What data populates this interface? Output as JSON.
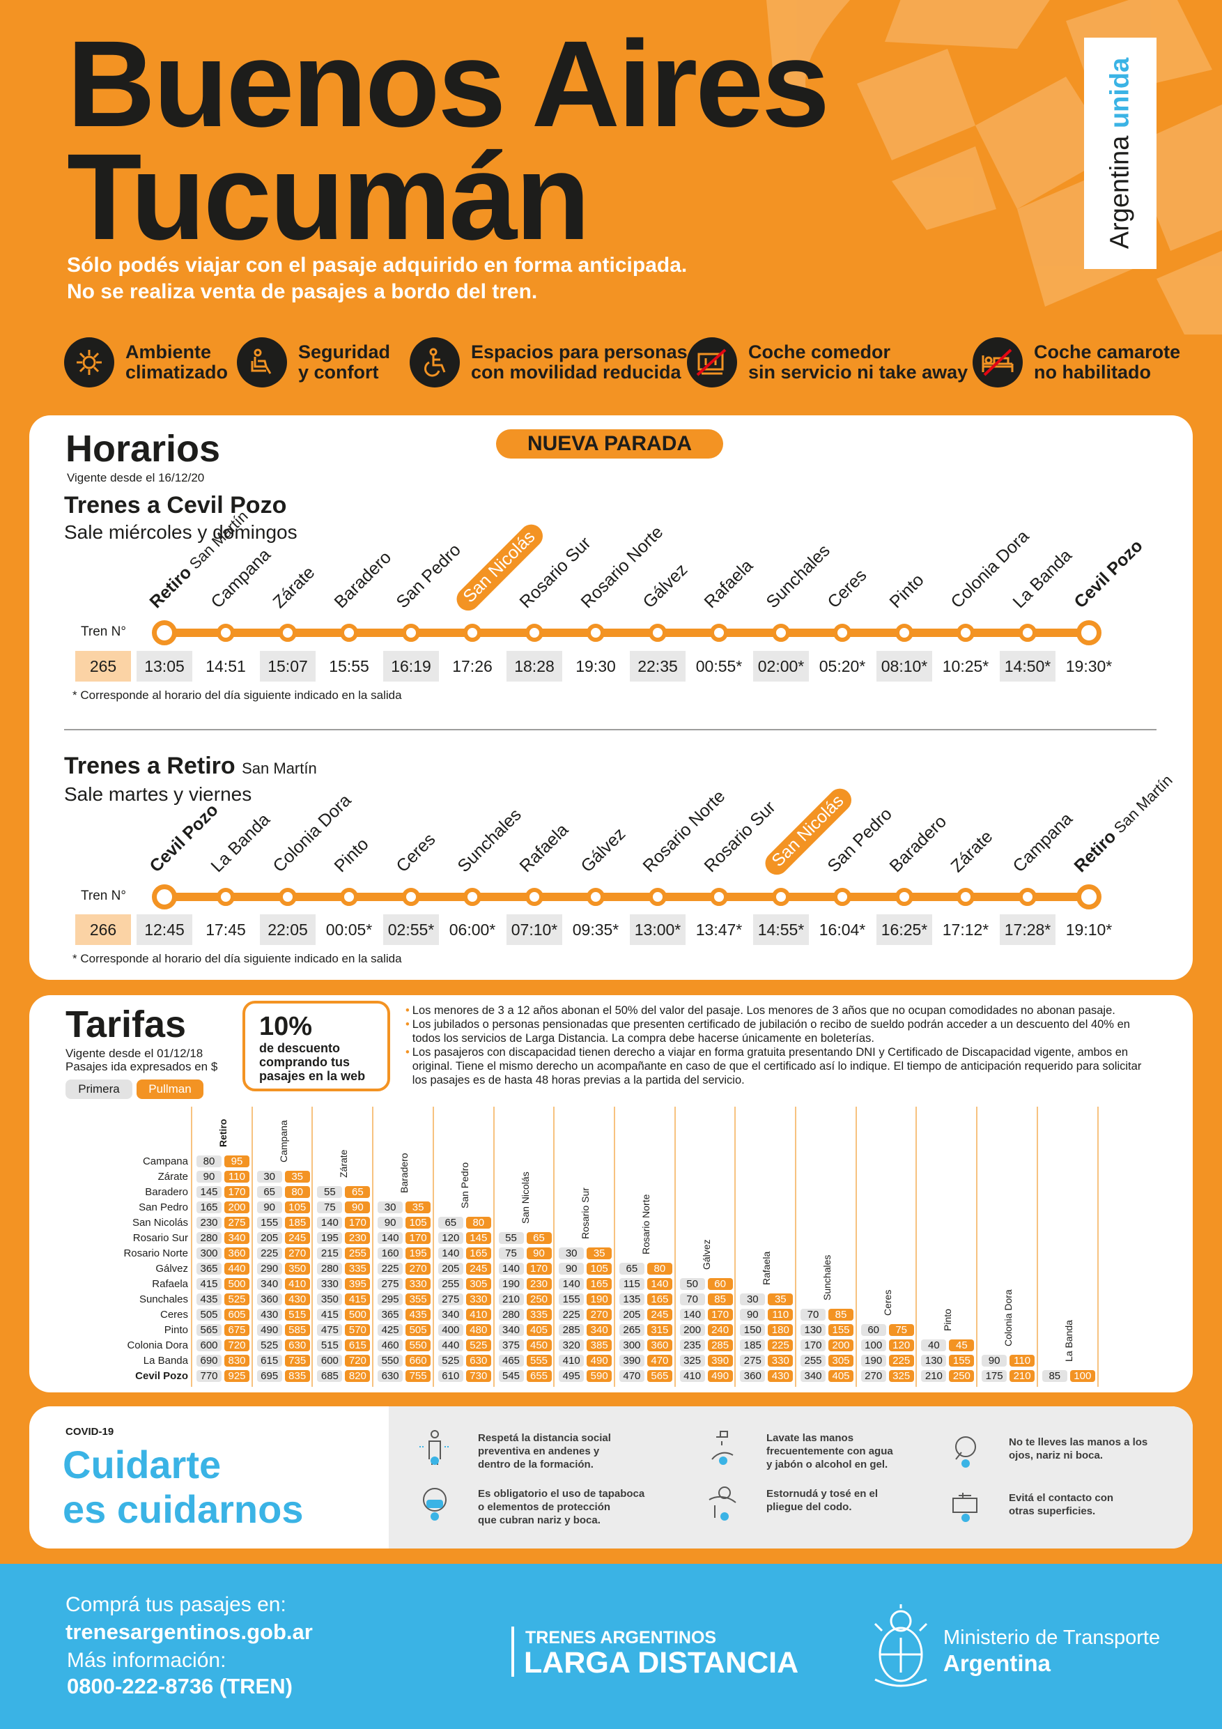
{
  "header": {
    "title_line1": "Buenos Aires",
    "title_line2": "Tucumán",
    "subtitle_line1": "Sólo podés viajar con el pasaje adquirido en forma anticipada.",
    "subtitle_line2": "No se realiza venta de pasajes a bordo del tren.",
    "brand_a": "Argentina",
    "brand_b": "unida"
  },
  "features": [
    {
      "icon": "climate-icon",
      "text": "Ambiente\nclimatizado"
    },
    {
      "icon": "seat-icon",
      "text": "Seguridad\ny confort"
    },
    {
      "icon": "wheelchair-icon",
      "text": "Espacios para personas\ncon movilidad reducida"
    },
    {
      "icon": "dining-car-off-icon",
      "text": "Coche comedor\nsin servicio ni take away"
    },
    {
      "icon": "sleeper-car-off-icon",
      "text": "Coche camarote\nno habilitado"
    }
  ],
  "horarios": {
    "title": "Horarios",
    "badge": "NUEVA PARADA",
    "vigente": "Vigente desde el 16/12/20",
    "tren_label": "Tren N°",
    "note": "* Corresponde al horario del día siguiente indicado en la salida",
    "outbound": {
      "title": "Trenes a Cevil Pozo",
      "days": "Sale miércoles y domingos",
      "train": "265",
      "stations": [
        "Retiro",
        "Campana",
        "Zárate",
        "Baradero",
        "San Pedro",
        "San Nicolás",
        "Rosario Sur",
        "Rosario Norte",
        "Gálvez",
        "Rafaela",
        "Sunchales",
        "Ceres",
        "Pinto",
        "Colonia Dora",
        "La Banda",
        "Cevil Pozo"
      ],
      "first_sub": "San Martín",
      "times": [
        "13:05",
        "14:51",
        "15:07",
        "15:55",
        "16:19",
        "17:26",
        "18:28",
        "19:30",
        "22:35",
        "00:55*",
        "02:00*",
        "05:20*",
        "08:10*",
        "10:25*",
        "14:50*",
        "19:30*"
      ]
    },
    "inbound": {
      "title": "Trenes a Retiro",
      "title_sub": "San Martín",
      "days": "Sale martes y viernes",
      "train": "266",
      "stations": [
        "Cevil Pozo",
        "La Banda",
        "Colonia Dora",
        "Pinto",
        "Ceres",
        "Sunchales",
        "Rafaela",
        "Gálvez",
        "Rosario Norte",
        "Rosario Sur",
        "San Nicolás",
        "San Pedro",
        "Baradero",
        "Zárate",
        "Campana",
        "Retiro"
      ],
      "last_sub": "San Martín",
      "times": [
        "12:45",
        "17:45",
        "22:05",
        "00:05*",
        "02:55*",
        "06:00*",
        "07:10*",
        "09:35*",
        "13:00*",
        "13:47*",
        "14:55*",
        "16:04*",
        "16:25*",
        "17:12*",
        "17:28*",
        "19:10*"
      ]
    }
  },
  "tarifas": {
    "title": "Tarifas",
    "vigente": "Vigente desde el 01/12/18",
    "ida": "Pasajes ida expresados en $",
    "class_primera": "Primera",
    "class_pullman": "Pullman",
    "promo_pct": "10%",
    "promo_text": "de descuento\ncomprando tus\npasajes en la web",
    "bullets": [
      "Los menores de 3 a 12 años abonan el 50% del valor del pasaje. Los menores de 3 años que no ocupan comodidades no abonan pasaje.",
      "Los jubilados o personas pensionadas que presenten certificado de jubilación o recibo de sueldo podrán acceder a un descuento del 40% en todos los servicios de Larga Distancia. La compra debe hacerse únicamente en boleterías.",
      "Los pasajeros con discapacidad tienen derecho a viajar en forma gratuita presentando DNI y Certificado de Discapacidad vigente, ambos en original. Tiene el mismo derecho un acompañante en caso de que el certificado así lo indique. El tiempo de anticipación requerido para solicitar los pasajes es de hasta 48 horas previas a la partida del servicio."
    ],
    "columns": [
      "Retiro",
      "Campana",
      "Zárate",
      "Baradero",
      "San Pedro",
      "San Nicolás",
      "Rosario Sur",
      "Rosario Norte",
      "Gálvez",
      "Rafaela",
      "Sunchales",
      "Ceres",
      "Pinto",
      "Colonia Dora",
      "La Banda"
    ],
    "rows": [
      {
        "name": "Campana",
        "v": [
          [
            "80",
            "95"
          ]
        ]
      },
      {
        "name": "Zárate",
        "v": [
          [
            "90",
            "110"
          ],
          [
            "30",
            "35"
          ]
        ]
      },
      {
        "name": "Baradero",
        "v": [
          [
            "145",
            "170"
          ],
          [
            "65",
            "80"
          ],
          [
            "55",
            "65"
          ]
        ]
      },
      {
        "name": "San Pedro",
        "v": [
          [
            "165",
            "200"
          ],
          [
            "90",
            "105"
          ],
          [
            "75",
            "90"
          ],
          [
            "30",
            "35"
          ]
        ]
      },
      {
        "name": "San Nicolás",
        "v": [
          [
            "230",
            "275"
          ],
          [
            "155",
            "185"
          ],
          [
            "140",
            "170"
          ],
          [
            "90",
            "105"
          ],
          [
            "65",
            "80"
          ]
        ]
      },
      {
        "name": "Rosario Sur",
        "v": [
          [
            "280",
            "340"
          ],
          [
            "205",
            "245"
          ],
          [
            "195",
            "230"
          ],
          [
            "140",
            "170"
          ],
          [
            "120",
            "145"
          ],
          [
            "55",
            "65"
          ]
        ]
      },
      {
        "name": "Rosario Norte",
        "v": [
          [
            "300",
            "360"
          ],
          [
            "225",
            "270"
          ],
          [
            "215",
            "255"
          ],
          [
            "160",
            "195"
          ],
          [
            "140",
            "165"
          ],
          [
            "75",
            "90"
          ],
          [
            "30",
            "35"
          ]
        ]
      },
      {
        "name": "Gálvez",
        "v": [
          [
            "365",
            "440"
          ],
          [
            "290",
            "350"
          ],
          [
            "280",
            "335"
          ],
          [
            "225",
            "270"
          ],
          [
            "205",
            "245"
          ],
          [
            "140",
            "170"
          ],
          [
            "90",
            "105"
          ],
          [
            "65",
            "80"
          ]
        ]
      },
      {
        "name": "Rafaela",
        "v": [
          [
            "415",
            "500"
          ],
          [
            "340",
            "410"
          ],
          [
            "330",
            "395"
          ],
          [
            "275",
            "330"
          ],
          [
            "255",
            "305"
          ],
          [
            "190",
            "230"
          ],
          [
            "140",
            "165"
          ],
          [
            "115",
            "140"
          ],
          [
            "50",
            "60"
          ]
        ]
      },
      {
        "name": "Sunchales",
        "v": [
          [
            "435",
            "525"
          ],
          [
            "360",
            "430"
          ],
          [
            "350",
            "415"
          ],
          [
            "295",
            "355"
          ],
          [
            "275",
            "330"
          ],
          [
            "210",
            "250"
          ],
          [
            "155",
            "190"
          ],
          [
            "135",
            "165"
          ],
          [
            "70",
            "85"
          ],
          [
            "30",
            "35"
          ]
        ]
      },
      {
        "name": "Ceres",
        "v": [
          [
            "505",
            "605"
          ],
          [
            "430",
            "515"
          ],
          [
            "415",
            "500"
          ],
          [
            "365",
            "435"
          ],
          [
            "340",
            "410"
          ],
          [
            "280",
            "335"
          ],
          [
            "225",
            "270"
          ],
          [
            "205",
            "245"
          ],
          [
            "140",
            "170"
          ],
          [
            "90",
            "110"
          ],
          [
            "70",
            "85"
          ]
        ]
      },
      {
        "name": "Pinto",
        "v": [
          [
            "565",
            "675"
          ],
          [
            "490",
            "585"
          ],
          [
            "475",
            "570"
          ],
          [
            "425",
            "505"
          ],
          [
            "400",
            "480"
          ],
          [
            "340",
            "405"
          ],
          [
            "285",
            "340"
          ],
          [
            "265",
            "315"
          ],
          [
            "200",
            "240"
          ],
          [
            "150",
            "180"
          ],
          [
            "130",
            "155"
          ],
          [
            "60",
            "75"
          ]
        ]
      },
      {
        "name": "Colonia Dora",
        "v": [
          [
            "600",
            "720"
          ],
          [
            "525",
            "630"
          ],
          [
            "515",
            "615"
          ],
          [
            "460",
            "550"
          ],
          [
            "440",
            "525"
          ],
          [
            "375",
            "450"
          ],
          [
            "320",
            "385"
          ],
          [
            "300",
            "360"
          ],
          [
            "235",
            "285"
          ],
          [
            "185",
            "225"
          ],
          [
            "170",
            "200"
          ],
          [
            "100",
            "120"
          ],
          [
            "40",
            "45"
          ]
        ]
      },
      {
        "name": "La Banda",
        "v": [
          [
            "690",
            "830"
          ],
          [
            "615",
            "735"
          ],
          [
            "600",
            "720"
          ],
          [
            "550",
            "660"
          ],
          [
            "525",
            "630"
          ],
          [
            "465",
            "555"
          ],
          [
            "410",
            "490"
          ],
          [
            "390",
            "470"
          ],
          [
            "325",
            "390"
          ],
          [
            "275",
            "330"
          ],
          [
            "255",
            "305"
          ],
          [
            "190",
            "225"
          ],
          [
            "130",
            "155"
          ],
          [
            "90",
            "110"
          ]
        ]
      },
      {
        "name": "Cevil Pozo",
        "v": [
          [
            "770",
            "925"
          ],
          [
            "695",
            "835"
          ],
          [
            "685",
            "820"
          ],
          [
            "630",
            "755"
          ],
          [
            "610",
            "730"
          ],
          [
            "545",
            "655"
          ],
          [
            "495",
            "590"
          ],
          [
            "470",
            "565"
          ],
          [
            "410",
            "490"
          ],
          [
            "360",
            "430"
          ],
          [
            "340",
            "405"
          ],
          [
            "270",
            "325"
          ],
          [
            "210",
            "250"
          ],
          [
            "175",
            "210"
          ],
          [
            "85",
            "100"
          ]
        ]
      }
    ]
  },
  "covid": {
    "label": "COVID-19",
    "title_line1": "Cuidarte",
    "title_line2": "es cuidarnos",
    "tips": [
      {
        "icon": "distance-icon",
        "text": "Respetá la distancia social\npreventiva en andenes y\ndentro de la formación."
      },
      {
        "icon": "handwash-icon",
        "text": "Lavate las manos\nfrecuentemente con agua\ny jabón o alcohol en gel."
      },
      {
        "icon": "no-face-touch-icon",
        "text": "No te lleves las manos a los\nojos, nariz ni boca."
      },
      {
        "icon": "mask-icon",
        "text": "Es obligatorio el uso de tapaboca\no elementos de protección\nque cubran nariz y boca."
      },
      {
        "icon": "sneeze-elbow-icon",
        "text": "Estornudá y tosé en el\npliegue del codo."
      },
      {
        "icon": "no-surface-touch-icon",
        "text": "Evitá el contacto con\notras superficies."
      }
    ]
  },
  "footer": {
    "buy_label": "Comprá tus pasajes en:",
    "website": "trenesargentinos.gob.ar",
    "info_label": "Más información:",
    "phone": "0800-222-8736 (TREN)",
    "brand_line1": "TRENES ARGENTINOS",
    "brand_line2": "LARGA DISTANCIA",
    "ministry_line1": "Ministerio de Transporte",
    "ministry_line2": "Argentina"
  },
  "colors": {
    "orange": "#f39323",
    "blue": "#3ab3e5",
    "dark": "#1d1d1b",
    "peach": "#fbd3a5"
  }
}
